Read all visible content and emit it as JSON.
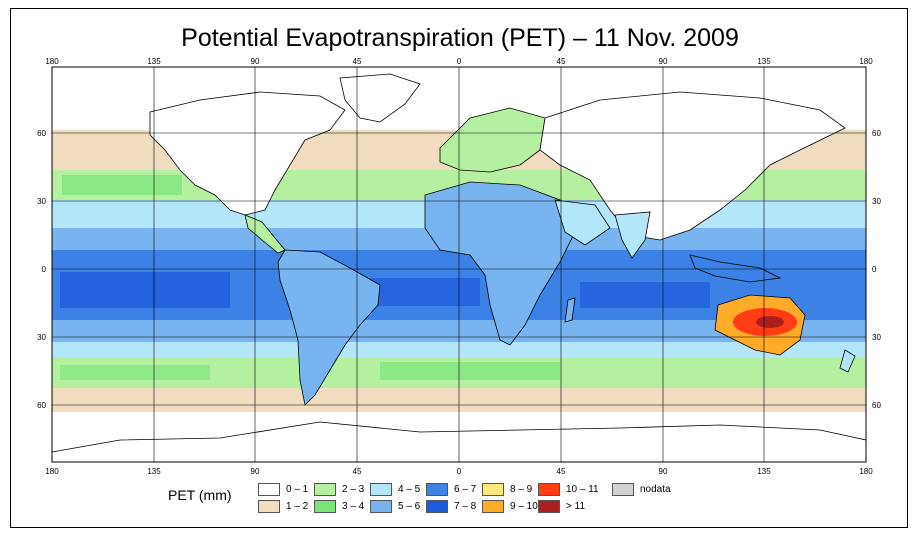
{
  "title": "Potential Evapotranspiration (PET) – 11 Nov. 2009",
  "map": {
    "lon_ticks": [
      "180",
      "135",
      "90",
      "45",
      "0",
      "45",
      "90",
      "135",
      "180"
    ],
    "lat_ticks": [
      "60",
      "30",
      "0",
      "30",
      "60"
    ]
  },
  "legend": {
    "title": "PET (mm)",
    "items": [
      {
        "label": "0 – 1",
        "color": "#ffffff"
      },
      {
        "label": "1 – 2",
        "color": "#f0dcbe"
      },
      {
        "label": "2 – 3",
        "color": "#b4f0a0"
      },
      {
        "label": "3 – 4",
        "color": "#78e678"
      },
      {
        "label": "4 – 5",
        "color": "#b4e6fa"
      },
      {
        "label": "5 – 6",
        "color": "#78b4f0"
      },
      {
        "label": "6 – 7",
        "color": "#3c82e6"
      },
      {
        "label": "7 – 8",
        "color": "#1e5adc"
      },
      {
        "label": "8 – 9",
        "color": "#ffe678"
      },
      {
        "label": "9 – 10",
        "color": "#ffaa28"
      },
      {
        "label": "10 – 11",
        "color": "#ff3c14"
      },
      {
        "label": "> 11",
        "color": "#aa1e1e"
      },
      {
        "label": "nodata",
        "color": "#d2d2d2"
      }
    ]
  }
}
